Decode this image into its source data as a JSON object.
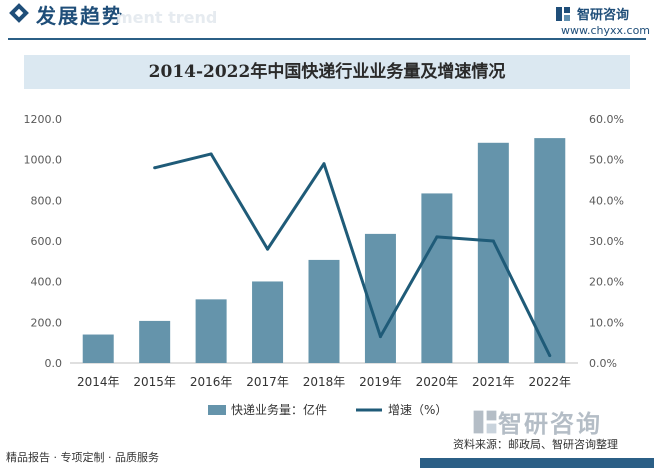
{
  "header": {
    "section_title": "发展趋势",
    "section_sub": "ment trend",
    "logo_name": "智研咨询",
    "logo_url": "www.chyxx.com"
  },
  "chart_title": "2014-2022年中国快递行业业务量及增速情况",
  "footer": {
    "left": "精品报告 · 专项定制 · 品质服务",
    "source": "资料来源：邮政局、智研咨询整理",
    "logo_name": "智研咨询"
  },
  "watermark": "智研咨询",
  "colors": {
    "bar": "#6594ab",
    "line": "#1f5b78",
    "brand": "#1f4e79"
  },
  "chart_data": {
    "type": "bar+line",
    "categories": [
      "2014年",
      "2015年",
      "2016年",
      "2017年",
      "2018年",
      "2019年",
      "2020年",
      "2021年",
      "2022年"
    ],
    "series": [
      {
        "name": "快递业务量：亿件",
        "type": "bar",
        "axis": "left",
        "values": [
          140,
          207,
          313,
          401,
          507,
          635,
          834,
          1083,
          1106
        ]
      },
      {
        "name": "增速（%）",
        "type": "line",
        "axis": "right",
        "values": [
          null,
          48.0,
          51.4,
          28.0,
          49.0,
          6.5,
          31.0,
          30.0,
          1.8
        ]
      }
    ],
    "y_left": {
      "min": 0,
      "max": 1200,
      "ticks": [
        "0.0",
        "200.0",
        "400.0",
        "600.0",
        "800.0",
        "1000.0",
        "1200.0"
      ]
    },
    "y_right": {
      "min": 0,
      "max": 60,
      "ticks": [
        "0.0%",
        "10.0%",
        "20.0%",
        "30.0%",
        "40.0%",
        "50.0%",
        "60.0%"
      ]
    },
    "grid": false,
    "legend": "bottom"
  }
}
